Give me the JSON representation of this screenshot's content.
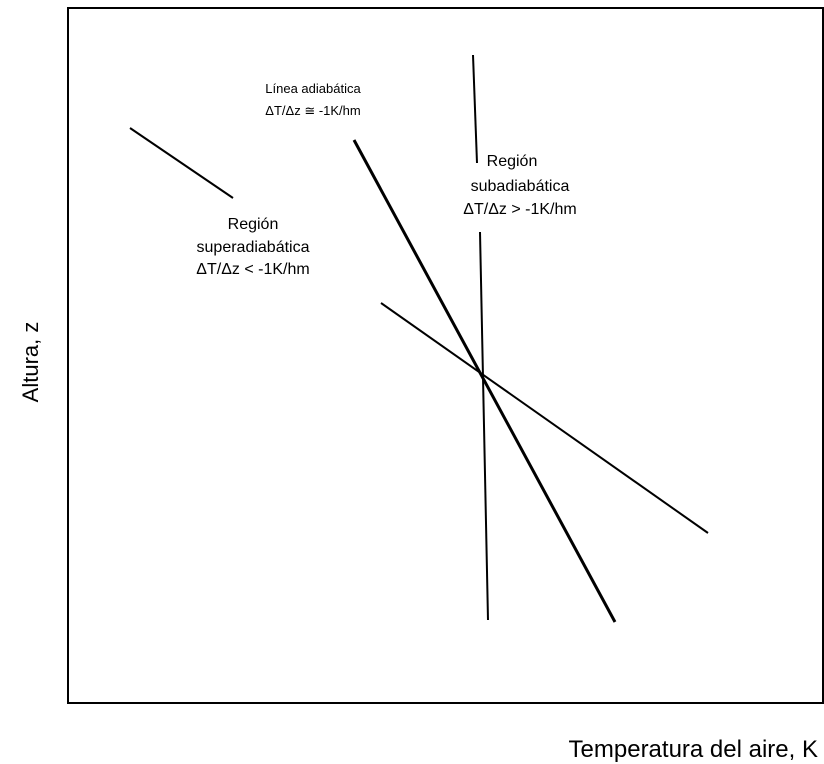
{
  "annotations": {
    "adiabatic": [
      "Línea adiabática",
      "ΔT/Δz ≅ -1K/hm"
    ],
    "subadiabatic": [
      "Región",
      "subadiabática",
      "ΔT/Δz > -1K/hm"
    ],
    "superadiabatic": [
      "Región",
      "superadiabática",
      "ΔT/Δz < -1K/hm"
    ]
  },
  "axes": {
    "y_label": "Altura, z",
    "x_label": "Temperatura del aire, K"
  }
}
